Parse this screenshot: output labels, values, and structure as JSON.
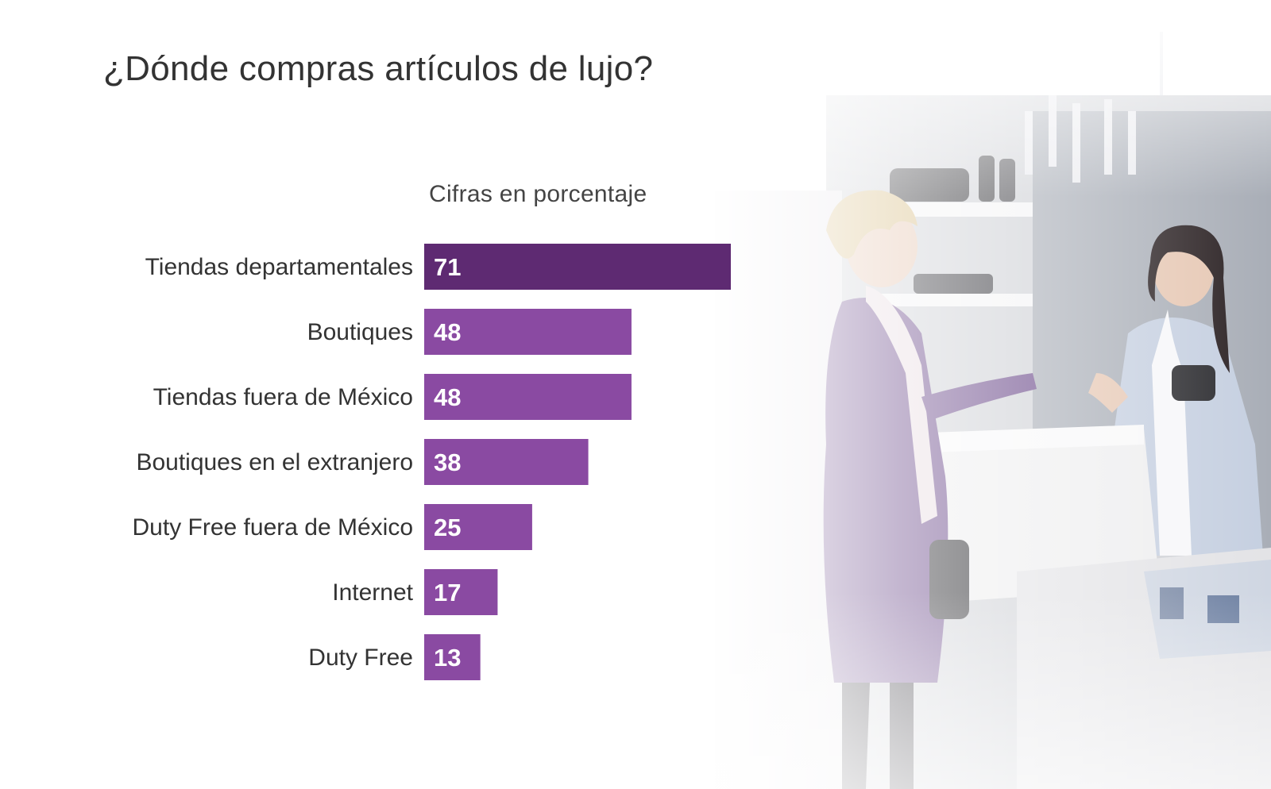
{
  "chart_data": {
    "type": "bar",
    "orientation": "horizontal",
    "title": "¿Dónde compras artículos de lujo?",
    "subtitle": "Cifras en porcentaje",
    "categories": [
      "Tiendas departamentales",
      "Boutiques",
      "Tiendas fuera de México",
      "Boutiques en el extranjero",
      "Duty Free fuera de México",
      "Internet",
      "Duty Free"
    ],
    "values": [
      71,
      48,
      48,
      38,
      25,
      17,
      13
    ],
    "xlim": [
      0,
      100
    ],
    "grid": false,
    "legend": "none",
    "colors": {
      "highlight": "#5e2a72",
      "bar": "#8a4aa2",
      "value_label": "#ffffff",
      "category_label": "#333333"
    }
  },
  "photo": {
    "description_icon": "store-counter-scene-icon",
    "colors": {
      "wall": "#b9bdc4",
      "dress": "#6b4a8a",
      "skin": "#e6c7b3",
      "hair_blonde": "#d9c08a",
      "hair_dark": "#2b2224",
      "counter": "#eeeeef",
      "jacket": "#c5cfe0"
    }
  }
}
